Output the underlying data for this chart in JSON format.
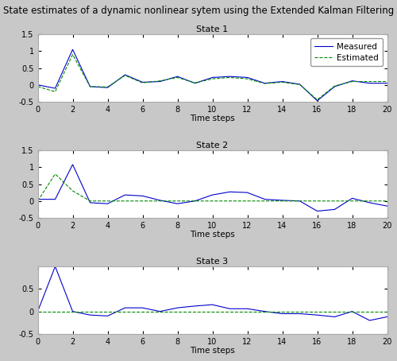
{
  "title": "State estimates of a dynamic nonlinear sytem using the Extended Kalman Filtering",
  "subplot_titles": [
    "State 1",
    "State 2",
    "State 3"
  ],
  "xlabel": "Time steps",
  "bg_color": "#c8c8c8",
  "ax_bg_color": "#ffffff",
  "measured_color": "#0000cc",
  "estimated_color": "#008800",
  "legend_labels": [
    "Measured",
    "Estimated"
  ],
  "x": [
    0,
    1,
    2,
    3,
    4,
    5,
    6,
    7,
    8,
    9,
    10,
    11,
    12,
    13,
    14,
    15,
    16,
    17,
    18,
    19,
    20
  ],
  "state1_measured": [
    0,
    -0.1,
    1.05,
    -0.05,
    -0.08,
    0.3,
    0.08,
    0.1,
    0.25,
    0.05,
    0.22,
    0.25,
    0.22,
    0.05,
    0.1,
    0.02,
    -0.47,
    -0.05,
    0.12,
    0.05,
    0.05
  ],
  "state1_estimated": [
    -0.05,
    -0.2,
    0.9,
    -0.05,
    -0.06,
    0.28,
    0.06,
    0.12,
    0.22,
    0.06,
    0.18,
    0.22,
    0.18,
    0.04,
    0.08,
    0.01,
    -0.44,
    -0.03,
    0.1,
    0.1,
    0.1
  ],
  "state2_measured": [
    0.05,
    0.05,
    1.08,
    -0.05,
    -0.08,
    0.18,
    0.15,
    0.02,
    -0.08,
    0.0,
    0.18,
    0.27,
    0.25,
    0.05,
    0.02,
    0.0,
    -0.3,
    -0.25,
    0.08,
    -0.05,
    -0.15
  ],
  "state2_estimated": [
    0,
    0.8,
    0.3,
    0.0,
    0.0,
    0.0,
    0.0,
    0.0,
    0.0,
    0.0,
    0.0,
    0.0,
    0.0,
    0.0,
    0.0,
    0.0,
    0.0,
    0.0,
    0.0,
    0.0,
    0.0
  ],
  "state3_measured": [
    0,
    1.0,
    0.0,
    -0.08,
    -0.1,
    0.08,
    0.08,
    0.0,
    0.08,
    0.12,
    0.15,
    0.06,
    0.06,
    0.0,
    -0.05,
    -0.05,
    -0.08,
    -0.12,
    0.0,
    -0.2,
    -0.12
  ],
  "state3_estimated": [
    0,
    0,
    0,
    0,
    0,
    0,
    0,
    0,
    0,
    0,
    0,
    0,
    0,
    0,
    0,
    0,
    0,
    0,
    0,
    0,
    0
  ],
  "ylim1": [
    -0.5,
    1.5
  ],
  "ylim2": [
    -0.5,
    1.5
  ],
  "ylim3": [
    -0.5,
    1.0
  ],
  "yticks1": [
    -0.5,
    0,
    0.5,
    1,
    1.5
  ],
  "yticks2": [
    -0.5,
    0,
    0.5,
    1,
    1.5
  ],
  "yticks3": [
    -0.5,
    0,
    0.5
  ]
}
